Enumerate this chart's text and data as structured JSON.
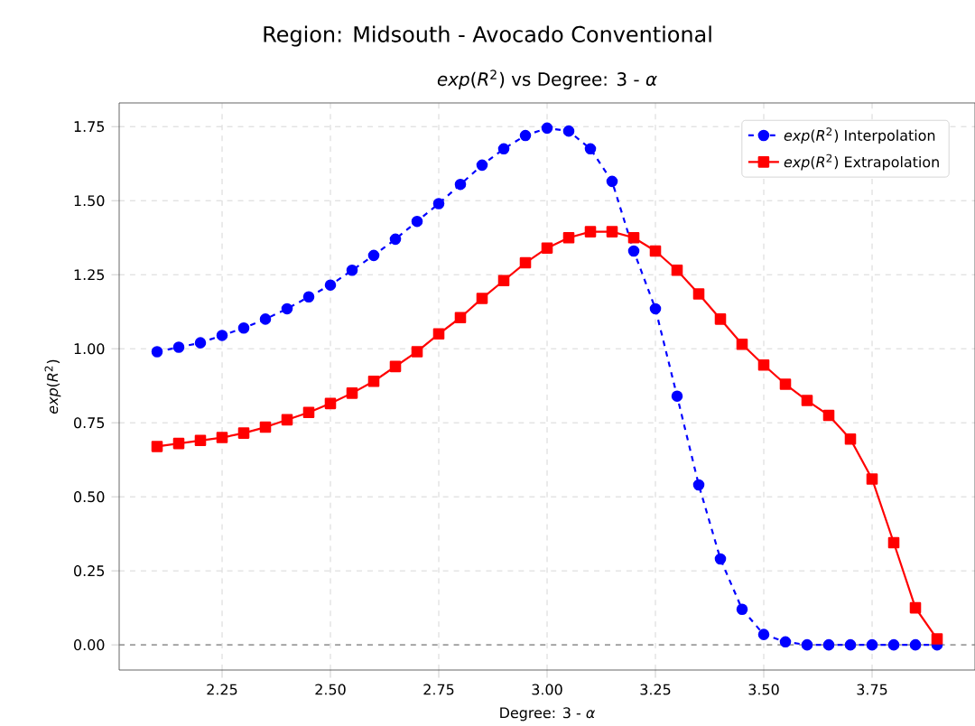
{
  "chart_data": {
    "type": "line",
    "title": "Region: Midsouth - Avocado Conventional",
    "subtitle": "*exp*(*R*$^{2}$) vs Degree: 3 - *α*",
    "xlabel": "Degree: 3 - *α*",
    "ylabel": "*exp*(*R*$^{2}$)",
    "x": [
      2.1,
      2.15,
      2.2,
      2.25,
      2.3,
      2.35,
      2.4,
      2.45,
      2.5,
      2.55,
      2.6,
      2.65,
      2.7,
      2.75,
      2.8,
      2.85,
      2.9,
      2.95,
      3.0,
      3.05,
      3.1,
      3.15,
      3.2,
      3.25,
      3.3,
      3.35,
      3.4,
      3.45,
      3.5,
      3.55,
      3.6,
      3.65,
      3.7,
      3.75,
      3.8,
      3.85,
      3.9
    ],
    "series": [
      {
        "name": "*exp*(*R*$^{2}$) Interpolation",
        "color": "#0000ff",
        "marker": "circle",
        "line_style": "dashed",
        "values": [
          0.99,
          1.005,
          1.02,
          1.045,
          1.07,
          1.1,
          1.135,
          1.175,
          1.215,
          1.265,
          1.315,
          1.37,
          1.43,
          1.49,
          1.555,
          1.62,
          1.675,
          1.72,
          1.745,
          1.735,
          1.675,
          1.565,
          1.33,
          1.135,
          0.84,
          0.54,
          0.29,
          0.12,
          0.035,
          0.01,
          0.0,
          0.0,
          0.0,
          0.0,
          0.0,
          0.0,
          0.0
        ]
      },
      {
        "name": "*exp*(*R*$^{2}$) Extrapolation",
        "color": "#ff0000",
        "marker": "square",
        "line_style": "solid",
        "values": [
          0.67,
          0.68,
          0.69,
          0.7,
          0.715,
          0.735,
          0.76,
          0.785,
          0.815,
          0.85,
          0.89,
          0.94,
          0.99,
          1.05,
          1.105,
          1.17,
          1.23,
          1.29,
          1.34,
          1.375,
          1.395,
          1.395,
          1.375,
          1.33,
          1.265,
          1.185,
          1.1,
          1.015,
          0.945,
          0.88,
          0.825,
          0.775,
          0.695,
          0.56,
          0.345,
          0.125,
          0.02
        ]
      }
    ],
    "xlim": [
      2.0125,
      3.9875
    ],
    "ylim": [
      -0.085,
      1.83
    ],
    "xticks": [
      {
        "value": 2.25,
        "label": "2.25"
      },
      {
        "value": 2.5,
        "label": "2.50"
      },
      {
        "value": 2.75,
        "label": "2.75"
      },
      {
        "value": 3.0,
        "label": "3.00"
      },
      {
        "value": 3.25,
        "label": "3.25"
      },
      {
        "value": 3.5,
        "label": "3.50"
      },
      {
        "value": 3.75,
        "label": "3.75"
      }
    ],
    "yticks": [
      {
        "value": 0,
        "label": "0.00"
      },
      {
        "value": 0.25,
        "label": "0.25"
      },
      {
        "value": 0.5,
        "label": "0.50"
      },
      {
        "value": 0.75,
        "label": "0.75"
      },
      {
        "value": 1.0,
        "label": "1.00"
      },
      {
        "value": 1.25,
        "label": "1.25"
      },
      {
        "value": 1.5,
        "label": "1.50"
      },
      {
        "value": 1.75,
        "label": "1.75"
      }
    ],
    "ref_lines": [
      {
        "axis": "y",
        "value": 0,
        "color": "#808080",
        "line_style": "dashed"
      }
    ],
    "grid": true,
    "legend": "top right"
  }
}
